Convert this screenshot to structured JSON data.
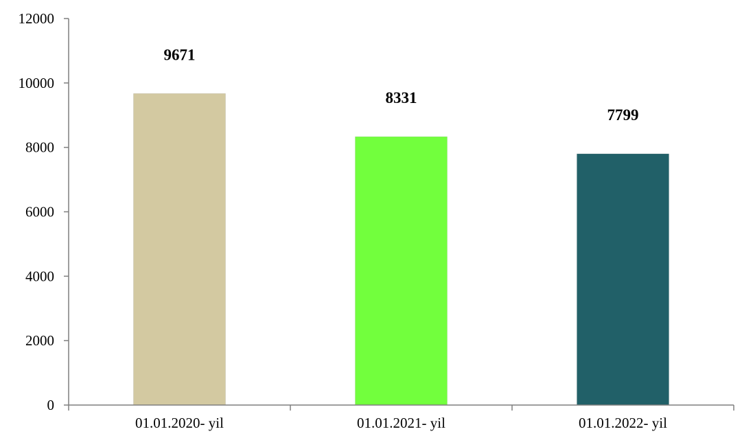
{
  "chart_data": {
    "type": "bar",
    "title": "",
    "xlabel": "",
    "ylabel": "",
    "categories": [
      "01.01.2020- yil",
      "01.01.2021- yil",
      "01.01.2022- yil"
    ],
    "values": [
      9671,
      8331,
      7799
    ],
    "data_labels": [
      "9671",
      "8331",
      "7799"
    ],
    "colors": [
      "#d3c9a1",
      "#72ff3d",
      "#216068"
    ],
    "ylim": [
      0,
      12000
    ],
    "yticks": [
      0,
      2000,
      4000,
      6000,
      8000,
      10000,
      12000
    ],
    "ytick_labels": [
      "0",
      "2000",
      "4000",
      "6000",
      "8000",
      "10000",
      "12000"
    ],
    "grid": false,
    "legend": "none"
  }
}
